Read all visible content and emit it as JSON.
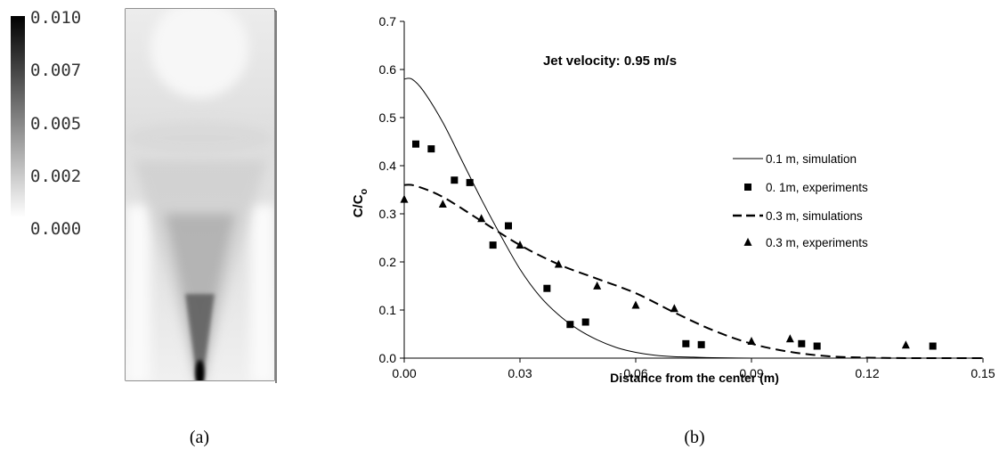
{
  "panel_a": {
    "caption": "(a)",
    "colorbar": {
      "tick_labels": [
        "0.010",
        "0.007",
        "0.005",
        "0.002",
        "0.000"
      ],
      "colors": [
        "#000000",
        "#ffffff"
      ]
    }
  },
  "panel_b": {
    "caption": "(b)"
  },
  "chart_data": {
    "type": "scatter",
    "title": "Jet velocity: 0.95 m/s",
    "xlabel": "Distance from the center (m)",
    "ylabel": "C/C",
    "ylabel_sub": "o",
    "xlim": [
      0,
      0.15
    ],
    "ylim": [
      0,
      0.7
    ],
    "xticks": [
      "0.00",
      "0.03",
      "0.06",
      "0.09",
      "0.12",
      "0.15"
    ],
    "yticks": [
      "0.0",
      "0.1",
      "0.2",
      "0.3",
      "0.4",
      "0.5",
      "0.6",
      "0.7"
    ],
    "grid": false,
    "legend_position": "right",
    "series": [
      {
        "name": "0.1 m, simulation",
        "kind": "line",
        "style": "solid",
        "x": [
          0.0,
          0.002,
          0.005,
          0.01,
          0.015,
          0.02,
          0.025,
          0.03,
          0.035,
          0.04,
          0.045,
          0.05,
          0.055,
          0.06,
          0.065,
          0.07,
          0.075,
          0.08,
          0.09,
          0.1,
          0.12,
          0.15
        ],
        "y": [
          0.58,
          0.58,
          0.555,
          0.49,
          0.41,
          0.33,
          0.255,
          0.185,
          0.13,
          0.09,
          0.06,
          0.038,
          0.022,
          0.012,
          0.006,
          0.003,
          0.002,
          0.001,
          0.0,
          0.0,
          0.0,
          0.0
        ]
      },
      {
        "name": "0. 1m, experiments",
        "kind": "markers",
        "marker": "square",
        "x": [
          0.003,
          0.007,
          0.013,
          0.017,
          0.023,
          0.027,
          0.037,
          0.043,
          0.047,
          0.073,
          0.077,
          0.103,
          0.107,
          0.137
        ],
        "y": [
          0.445,
          0.435,
          0.37,
          0.365,
          0.235,
          0.275,
          0.145,
          0.07,
          0.075,
          0.03,
          0.028,
          0.03,
          0.025,
          0.025
        ]
      },
      {
        "name": "0.3 m, simulations",
        "kind": "line",
        "style": "dashed",
        "x": [
          0.0,
          0.003,
          0.01,
          0.02,
          0.03,
          0.04,
          0.05,
          0.06,
          0.07,
          0.08,
          0.09,
          0.1,
          0.11,
          0.12,
          0.13,
          0.14,
          0.15
        ],
        "y": [
          0.36,
          0.358,
          0.335,
          0.285,
          0.235,
          0.195,
          0.165,
          0.135,
          0.095,
          0.058,
          0.03,
          0.013,
          0.004,
          0.001,
          0.0,
          0.0,
          0.0
        ]
      },
      {
        "name": "0.3 m, experiments",
        "kind": "markers",
        "marker": "triangle",
        "x": [
          0.0,
          0.01,
          0.02,
          0.03,
          0.04,
          0.05,
          0.06,
          0.07,
          0.09,
          0.1,
          0.13
        ],
        "y": [
          0.33,
          0.32,
          0.29,
          0.235,
          0.195,
          0.15,
          0.11,
          0.103,
          0.035,
          0.04,
          0.027
        ]
      }
    ]
  }
}
